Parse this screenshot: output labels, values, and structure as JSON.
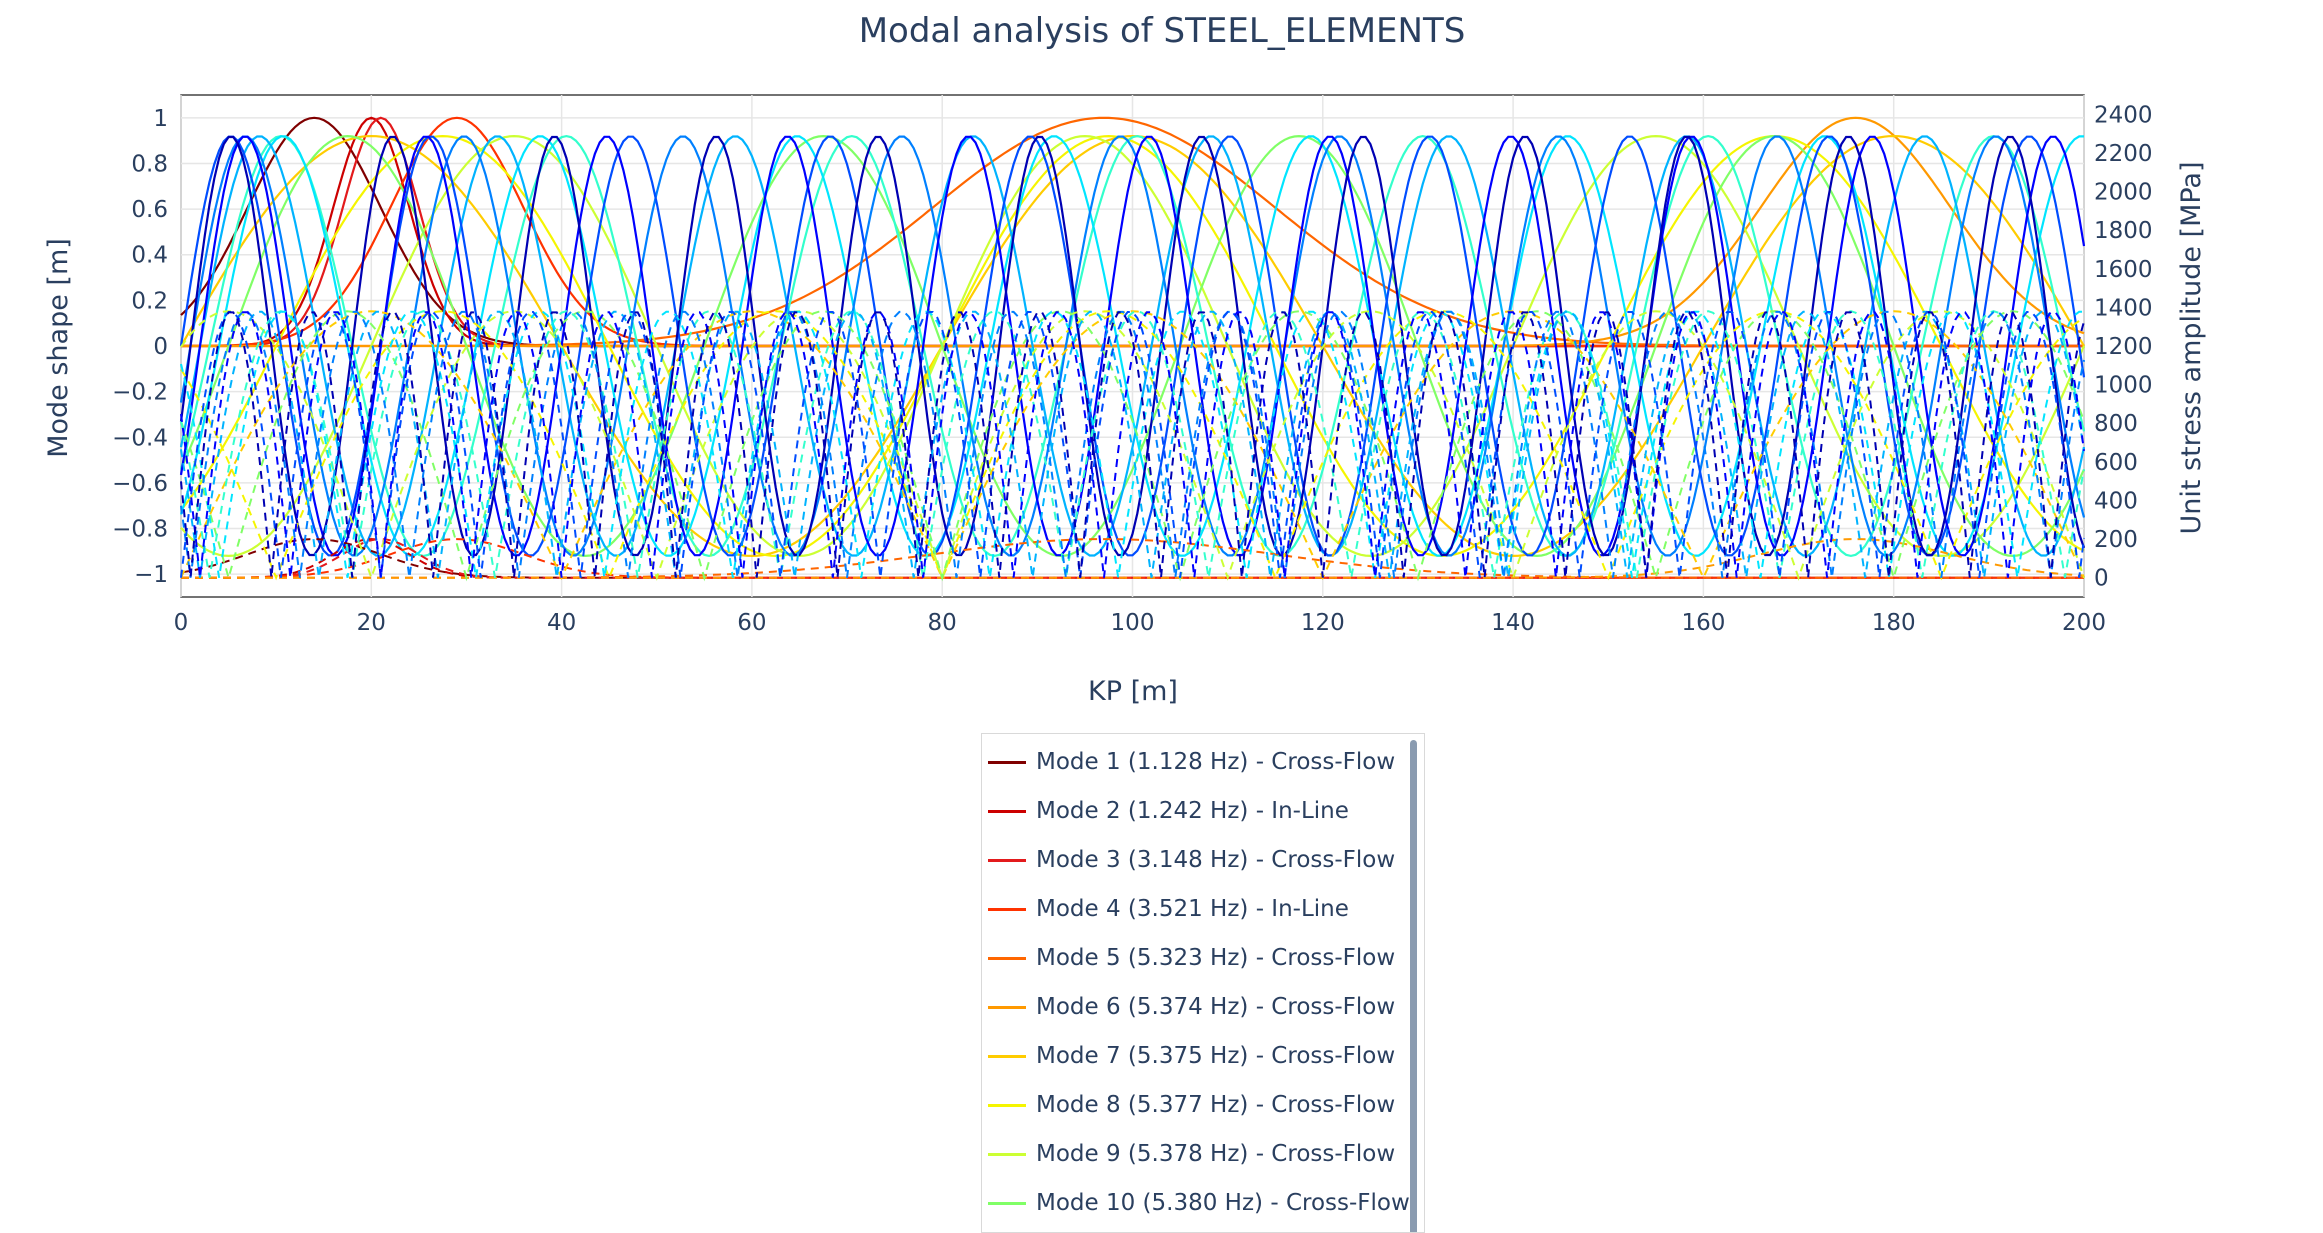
{
  "chart_data": {
    "type": "line",
    "title": "Modal analysis of STEEL_ELEMENTS",
    "xlabel": "KP [m]",
    "ylabel": "Mode shape [m]",
    "y2label": "Unit stress amplitude [MPa]",
    "xlim": [
      0,
      200
    ],
    "ylim": [
      -1.1,
      1.1
    ],
    "y2lim": [
      -100,
      2500
    ],
    "xticks": [
      "0",
      "20",
      "40",
      "60",
      "80",
      "100",
      "120",
      "140",
      "160",
      "180",
      "200"
    ],
    "yticks": [
      "1",
      "0.8",
      "0.6",
      "0.4",
      "0.2",
      "0",
      "−0.2",
      "−0.4",
      "−0.6",
      "−0.8",
      "−1"
    ],
    "y2ticks": [
      "2400",
      "2200",
      "2000",
      "1800",
      "1600",
      "1400",
      "1200",
      "1000",
      "800",
      "600",
      "400",
      "200",
      "0"
    ],
    "grid": true,
    "legend_placement": "bottom-center",
    "series": [
      {
        "name": "Mode 1 (1.128 Hz) - Cross-Flow",
        "color": "#800000",
        "mode_shape": {
          "kind": "bump",
          "peak_kp": 14,
          "sigma": 7
        }
      },
      {
        "name": "Mode 2 (1.242 Hz) - In-Line",
        "color": "#cc0000",
        "mode_shape": {
          "kind": "bump",
          "peak_kp": 20,
          "sigma": 4
        }
      },
      {
        "name": "Mode 3 (3.148 Hz) - Cross-Flow",
        "color": "#e31a1c",
        "mode_shape": {
          "kind": "bump",
          "peak_kp": 21,
          "sigma": 4
        }
      },
      {
        "name": "Mode 4 (3.521 Hz) - In-Line",
        "color": "#ff3300",
        "mode_shape": {
          "kind": "bump",
          "peak_kp": 29,
          "sigma": 7
        }
      },
      {
        "name": "Mode 5 (5.323 Hz) - Cross-Flow",
        "color": "#ff6600",
        "mode_shape": {
          "kind": "bump",
          "peak_kp": 97,
          "sigma": 18
        }
      },
      {
        "name": "Mode 6 (5.374 Hz) - Cross-Flow",
        "color": "#ff9900",
        "mode_shape": {
          "kind": "bump",
          "peak_kp": 176,
          "sigma": 10
        }
      },
      {
        "name": "Mode 7 (5.375 Hz) - Cross-Flow",
        "color": "#ffcc00",
        "mode_shape": {
          "kind": "sine",
          "period": 80,
          "phase": 0
        }
      },
      {
        "name": "Mode 8 (5.377 Hz) - Cross-Flow",
        "color": "#f5f500",
        "mode_shape": {
          "kind": "sine",
          "period": 70,
          "phase": 10
        }
      },
      {
        "name": "Mode 9 (5.378 Hz) - Cross-Flow",
        "color": "#ccff33",
        "mode_shape": {
          "kind": "sine",
          "period": 60,
          "phase": 20
        }
      },
      {
        "name": "Mode 10 (5.380 Hz) - Cross-Flow",
        "color": "#80ff66",
        "mode_shape": {
          "kind": "sine",
          "period": 50,
          "phase": 5
        }
      },
      {
        "color": "#33ffcc",
        "mode_shape": {
          "kind": "sine",
          "period": 30,
          "phase": 3
        }
      },
      {
        "color": "#00e5ff",
        "mode_shape": {
          "kind": "sine",
          "period": 27,
          "phase": 4
        }
      },
      {
        "color": "#00b3ff",
        "mode_shape": {
          "kind": "sine",
          "period": 25,
          "phase": 2
        }
      },
      {
        "color": "#0080ff",
        "mode_shape": {
          "kind": "sine",
          "period": 23,
          "phase": 1
        }
      },
      {
        "color": "#004dff",
        "mode_shape": {
          "kind": "sine",
          "period": 21,
          "phase": 0
        }
      },
      {
        "color": "#0000ff",
        "mode_shape": {
          "kind": "sine",
          "period": 19,
          "phase": 2
        }
      },
      {
        "color": "#0000b3",
        "mode_shape": {
          "kind": "sine",
          "period": 17,
          "phase": 1
        }
      }
    ]
  }
}
